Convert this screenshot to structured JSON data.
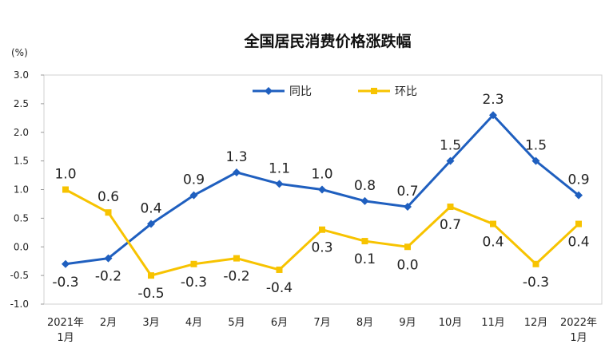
{
  "chart_data": {
    "type": "line",
    "title": "全国居民消费价格涨跌幅",
    "ylabel": "(%)",
    "ylim": [
      -1.0,
      3.0
    ],
    "yticks": [
      "3.0",
      "2.5",
      "2.0",
      "1.5",
      "1.0",
      "0.5",
      "0.0",
      "-0.5",
      "-1.0"
    ],
    "ytick_values": [
      3.0,
      2.5,
      2.0,
      1.5,
      1.0,
      0.5,
      0.0,
      -0.5,
      -1.0
    ],
    "categories": [
      [
        "2021年",
        "1月"
      ],
      [
        "2月"
      ],
      [
        "3月"
      ],
      [
        "4月"
      ],
      [
        "5月"
      ],
      [
        "6月"
      ],
      [
        "7月"
      ],
      [
        "8月"
      ],
      [
        "9月"
      ],
      [
        "10月"
      ],
      [
        "11月"
      ],
      [
        "12月"
      ],
      [
        "2022年",
        "1月"
      ]
    ],
    "legend_position": "top-center",
    "grid": false,
    "series": [
      {
        "name": "同比",
        "color": "#1f5fbf",
        "marker": "diamond",
        "values": [
          -0.3,
          -0.2,
          0.4,
          0.9,
          1.3,
          1.1,
          1.0,
          0.8,
          0.7,
          1.5,
          2.3,
          1.5,
          0.9
        ],
        "labels": [
          "-0.3",
          "-0.2",
          "0.4",
          "0.9",
          "1.3",
          "1.1",
          "1.0",
          "0.8",
          "0.7",
          "1.5",
          "2.3",
          "1.5",
          "0.9"
        ],
        "label_pos": [
          "below",
          "below",
          "above",
          "above",
          "above",
          "above",
          "above",
          "above",
          "above",
          "above",
          "above",
          "above",
          "above"
        ]
      },
      {
        "name": "环比",
        "color": "#f7c300",
        "marker": "square",
        "values": [
          1.0,
          0.6,
          -0.5,
          -0.3,
          -0.2,
          -0.4,
          0.3,
          0.1,
          0.0,
          0.7,
          0.4,
          -0.3,
          0.4
        ],
        "labels": [
          "1.0",
          "0.6",
          "-0.5",
          "-0.3",
          "-0.2",
          "-0.4",
          "0.3",
          "0.1",
          "0.0",
          "0.7",
          "0.4",
          "-0.3",
          "0.4"
        ],
        "label_pos": [
          "above",
          "above",
          "below",
          "below",
          "below",
          "below",
          "below",
          "below",
          "below",
          "below",
          "below",
          "below",
          "below"
        ]
      }
    ]
  }
}
